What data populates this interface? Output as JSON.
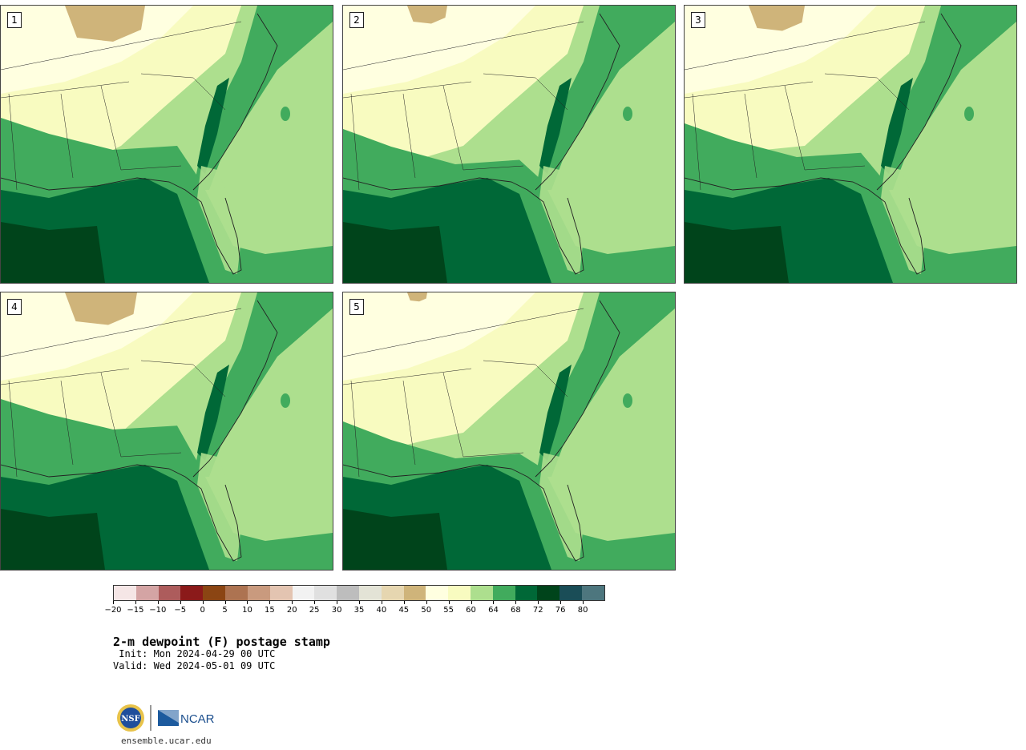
{
  "panels": [
    {
      "label": "1",
      "variant": 0
    },
    {
      "label": "2",
      "variant": 1
    },
    {
      "label": "3",
      "variant": 2
    },
    {
      "label": "4",
      "variant": 3
    },
    {
      "label": "5",
      "variant": 4
    }
  ],
  "colorbar": {
    "ticks": [
      "−20",
      "−15",
      "−10",
      "−5",
      "0",
      "5",
      "10",
      "15",
      "20",
      "25",
      "30",
      "35",
      "40",
      "45",
      "50",
      "55",
      "60",
      "64",
      "68",
      "72",
      "76",
      "80"
    ],
    "colors": [
      "#f5e6e6",
      "#d4a4a4",
      "#ad5c5c",
      "#8b1a1a",
      "#8b4513",
      "#ad7351",
      "#c99a7e",
      "#e3c4b1",
      "#f2f2f2",
      "#e0e0e0",
      "#bdbdbd",
      "#e3e3d6",
      "#e6d6b0",
      "#cfb47a",
      "#ffffe0",
      "#f8fbc0",
      "#addf8e",
      "#41ab5d",
      "#006837",
      "#00441b",
      "#1a4d57",
      "#4d767e"
    ]
  },
  "title": "2-m dewpoint (F) postage stamp",
  "init": " Init: Mon 2024-04-29 00 UTC",
  "valid": "Valid: Wed 2024-05-01 09 UTC",
  "logos": {
    "nsf": "NSF",
    "ncar": "NCAR"
  },
  "site": "ensemble.ucar.edu"
}
